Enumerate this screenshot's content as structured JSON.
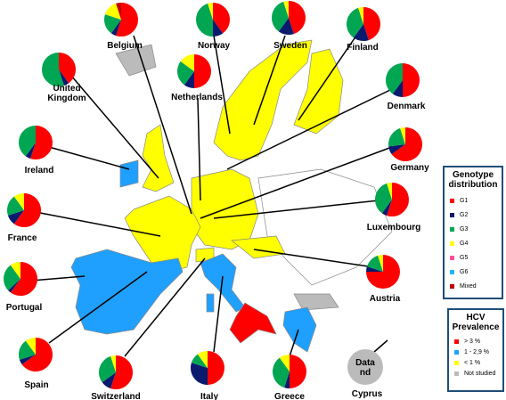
{
  "countries": [
    {
      "name": "Belgium",
      "genotype": [
        55,
        5,
        20,
        15,
        0,
        0,
        5
      ]
    },
    {
      "name": "Norway",
      "genotype": [
        40,
        10,
        45,
        5,
        0,
        0,
        0
      ]
    },
    {
      "name": "Sweden",
      "genotype": [
        45,
        15,
        35,
        5,
        0,
        0,
        0
      ]
    },
    {
      "name": "Finland",
      "genotype": [
        45,
        15,
        35,
        5,
        0,
        0,
        0
      ]
    },
    {
      "name": "United Kingdom",
      "genotype": [
        40,
        5,
        55,
        0,
        0,
        0,
        0
      ]
    },
    {
      "name": "Netherlands",
      "genotype": [
        50,
        10,
        25,
        15,
        0,
        0,
        0
      ]
    },
    {
      "name": "Denmark",
      "genotype": [
        50,
        10,
        40,
        0,
        0,
        0,
        0
      ]
    },
    {
      "name": "Ireland",
      "genotype": [
        55,
        5,
        40,
        0,
        0,
        0,
        0
      ]
    },
    {
      "name": "Germany",
      "genotype": [
        65,
        8,
        22,
        5,
        0,
        0,
        0
      ]
    },
    {
      "name": "France",
      "genotype": [
        60,
        10,
        20,
        10,
        0,
        0,
        0
      ]
    },
    {
      "name": "Luxembourg",
      "genotype": [
        55,
        5,
        35,
        5,
        0,
        0,
        0
      ]
    },
    {
      "name": "Portugal",
      "genotype": [
        60,
        3,
        27,
        10,
        0,
        0,
        0
      ]
    },
    {
      "name": "Austria",
      "genotype": [
        75,
        5,
        15,
        5,
        0,
        0,
        0
      ]
    },
    {
      "name": "Spain",
      "genotype": [
        65,
        5,
        20,
        10,
        0,
        0,
        0
      ]
    },
    {
      "name": "Switzerland",
      "genotype": [
        55,
        10,
        30,
        5,
        0,
        0,
        0
      ]
    },
    {
      "name": "Italy",
      "genotype": [
        50,
        30,
        10,
        10,
        0,
        0,
        0
      ]
    },
    {
      "name": "Greece",
      "genotype": [
        50,
        5,
        35,
        10,
        0,
        0,
        0
      ]
    }
  ],
  "cyprus": {
    "note": "Data nd",
    "name": "Cyprus"
  },
  "legend_genotype": {
    "title": "Genotype distribution",
    "items": [
      {
        "name": "G1",
        "color": "#ff0000"
      },
      {
        "name": "G2",
        "color": "#0a1a6e"
      },
      {
        "name": "G3",
        "color": "#00a651"
      },
      {
        "name": "G4",
        "color": "#ffff00"
      },
      {
        "name": "G5",
        "color": "#ff4fa0"
      },
      {
        "name": "G6",
        "color": "#1fb5ff"
      },
      {
        "name": "Mixed",
        "color": "#c00000"
      }
    ]
  },
  "legend_prevalence": {
    "title": "HCV Prevalence",
    "items": [
      {
        "name": "> 3 %",
        "color": "#ff0000"
      },
      {
        "name": "1 - 2,9 %",
        "color": "#1fa0ff"
      },
      {
        "name": "< 1 %",
        "color": "#ffff00"
      },
      {
        "name": "Not studied",
        "color": "#bbbbbb"
      }
    ]
  }
}
